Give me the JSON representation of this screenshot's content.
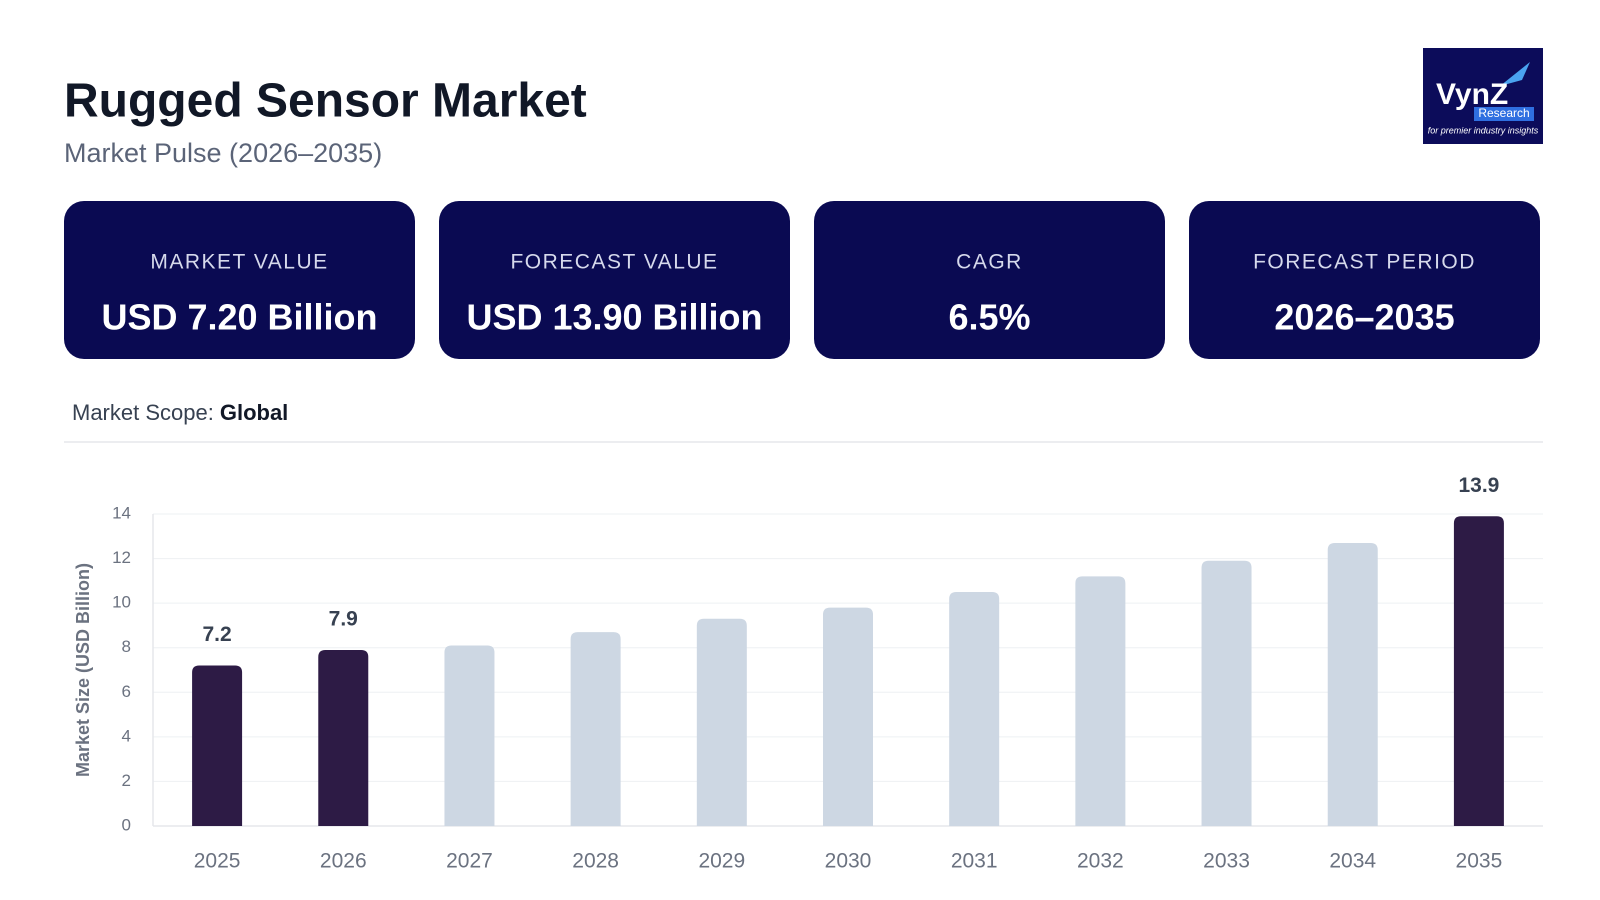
{
  "header": {
    "title": "Rugged Sensor Market",
    "subtitle": "Market Pulse (2026–2035)"
  },
  "logo": {
    "name": "VynZ",
    "sub": "Research",
    "tagline": "for premier industry insights"
  },
  "cards": [
    {
      "label": "MARKET VALUE",
      "value": "USD 7.20 Billion"
    },
    {
      "label": "FORECAST VALUE",
      "value": "USD 13.90 Billion"
    },
    {
      "label": "CAGR",
      "value": "6.5%"
    },
    {
      "label": "FORECAST PERIOD",
      "value": "2026–2035"
    }
  ],
  "scope": {
    "label": "Market Scope:",
    "value": "Global"
  },
  "chart_data": {
    "type": "bar",
    "y_label": "Market Size (USD Billion)",
    "categories": [
      "2025",
      "2026",
      "2027",
      "2028",
      "2029",
      "2030",
      "2031",
      "2032",
      "2033",
      "2034",
      "2035"
    ],
    "values": [
      7.2,
      7.9,
      8.1,
      8.7,
      9.3,
      9.8,
      10.5,
      11.2,
      11.9,
      12.7,
      13.9
    ],
    "value_labels": [
      "7.2",
      "7.9",
      null,
      null,
      null,
      null,
      null,
      null,
      null,
      null,
      "13.9"
    ],
    "colors": [
      "#2d1b45",
      "#2d1b45",
      "#cdd7e3",
      "#cdd7e3",
      "#cdd7e3",
      "#cdd7e3",
      "#cdd7e3",
      "#cdd7e3",
      "#cdd7e3",
      "#cdd7e3",
      "#2d1b45"
    ],
    "ylim": [
      0,
      14
    ],
    "yticks": [
      0,
      2,
      4,
      6,
      8,
      10,
      12,
      14
    ],
    "grid": true
  }
}
